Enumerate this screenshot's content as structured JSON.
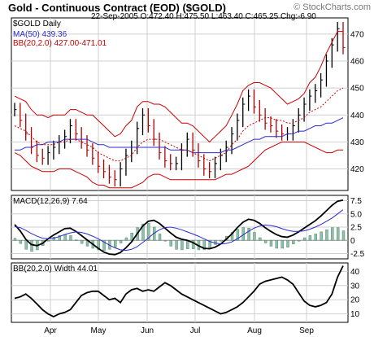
{
  "header": {
    "title": "Gold - Continuous Contract (EOD) ($GOLD)",
    "watermark": "© StockCharts.com"
  },
  "chart_data": [
    {
      "type": "line",
      "title": "$GOLD Daily",
      "date": "22-Sep-2005",
      "ohlc": {
        "open": "O:472.40",
        "high": "H:475.50",
        "low": "L:463.40",
        "close": "C:465.25",
        "change": "Chg:-6.90"
      },
      "legend": [
        "MA(50) 439.36",
        "BB(20,2.0) 427.00-471.01"
      ],
      "ylim": [
        412,
        476
      ],
      "yticks": [
        420,
        430,
        440,
        450,
        460,
        470
      ],
      "xticks": [
        "Apr",
        "May",
        "Jun",
        "Jul",
        "Aug",
        "Sep"
      ],
      "x": [
        0,
        3,
        6,
        9,
        12,
        15,
        18,
        21,
        24,
        27,
        30,
        33,
        36,
        39,
        42,
        45,
        48,
        51,
        54,
        57,
        60,
        63,
        66,
        69,
        72,
        75,
        78,
        81,
        84,
        87,
        90,
        93,
        96,
        99,
        102,
        105,
        108,
        111,
        114,
        117,
        120,
        123,
        126,
        129,
        132,
        135,
        138,
        141,
        144,
        147,
        150,
        153,
        156,
        159,
        162,
        165,
        168,
        171,
        174,
        177
      ],
      "series": [
        {
          "name": "Price",
          "color": "#000000",
          "values": [
            442,
            438,
            433,
            428,
            425,
            424,
            426,
            428,
            430,
            432,
            436,
            433,
            430,
            427,
            424,
            421,
            419,
            417,
            416,
            420,
            425,
            428,
            435,
            440,
            436,
            431,
            426,
            423,
            422,
            422,
            427,
            431,
            427,
            423,
            420,
            419,
            422,
            425,
            428,
            433,
            438,
            444,
            447,
            443,
            440,
            437,
            436,
            434,
            433,
            433,
            436,
            440,
            444,
            447,
            449,
            453,
            460,
            466,
            472,
            465
          ]
        },
        {
          "name": "MA(50)",
          "color": "#2a2ad0",
          "values": [
            427,
            427,
            428,
            428,
            429,
            429,
            430,
            430,
            430,
            431,
            431,
            431,
            431,
            431,
            430,
            429,
            429,
            428,
            428,
            428,
            428,
            428,
            428,
            428,
            428,
            428,
            428,
            428,
            427,
            427,
            427,
            427,
            426,
            426,
            426,
            426,
            426,
            426,
            427,
            427,
            428,
            429,
            430,
            431,
            431,
            432,
            432,
            432,
            432,
            433,
            433,
            434,
            434,
            435,
            436,
            436,
            437,
            437,
            438,
            439
          ]
        },
        {
          "name": "BB upper",
          "color": "#cc0000",
          "values": [
            447,
            446,
            445,
            442,
            440,
            440,
            439,
            440,
            440,
            440,
            442,
            442,
            441,
            440,
            440,
            438,
            436,
            434,
            432,
            433,
            436,
            438,
            443,
            445,
            445,
            444,
            444,
            443,
            441,
            439,
            437,
            437,
            436,
            434,
            432,
            430,
            432,
            434,
            436,
            440,
            444,
            449,
            451,
            452,
            452,
            451,
            450,
            448,
            446,
            444,
            445,
            446,
            448,
            452,
            454,
            458,
            463,
            467,
            471,
            471
          ]
        },
        {
          "name": "BB lower",
          "color": "#cc0000",
          "values": [
            426,
            425,
            423,
            421,
            420,
            419,
            419,
            419,
            420,
            420,
            420,
            419,
            418,
            417,
            415,
            414,
            414,
            413,
            413,
            413,
            413,
            413,
            414,
            415,
            417,
            418,
            418,
            417,
            416,
            416,
            416,
            416,
            416,
            416,
            416,
            416,
            416,
            417,
            418,
            418,
            419,
            420,
            421,
            423,
            425,
            427,
            428,
            429,
            430,
            430,
            430,
            430,
            430,
            429,
            428,
            427,
            426,
            426,
            427,
            427
          ]
        },
        {
          "name": "BB mid",
          "color": "#cc0000",
          "values": [
            436,
            435,
            434,
            432,
            430,
            429,
            429,
            429,
            430,
            430,
            431,
            431,
            430,
            429,
            428,
            426,
            425,
            424,
            423,
            423,
            424,
            425,
            428,
            430,
            431,
            431,
            431,
            430,
            429,
            428,
            427,
            427,
            426,
            425,
            424,
            423,
            424,
            425,
            426,
            429,
            431,
            434,
            436,
            437,
            438,
            439,
            439,
            438,
            438,
            437,
            437,
            438,
            439,
            441,
            442,
            443,
            445,
            447,
            449,
            450
          ]
        }
      ]
    },
    {
      "type": "line",
      "title": "MACD(12,26,9)",
      "value_label": "7.64",
      "ylim": [
        -3.5,
        8.5
      ],
      "yticks": [
        -2.5,
        0,
        2.5,
        5.0,
        7.5
      ],
      "ytick_labels": [
        "-2.5",
        "0",
        "2.5",
        "5.0",
        "7.5"
      ],
      "x": [
        0,
        3,
        6,
        9,
        12,
        15,
        18,
        21,
        24,
        27,
        30,
        33,
        36,
        39,
        42,
        45,
        48,
        51,
        54,
        57,
        60,
        63,
        66,
        69,
        72,
        75,
        78,
        81,
        84,
        87,
        90,
        93,
        96,
        99,
        102,
        105,
        108,
        111,
        114,
        117,
        120,
        123,
        126,
        129,
        132,
        135,
        138,
        141,
        144,
        147,
        150,
        153,
        156,
        159,
        162,
        165,
        168,
        171,
        174,
        177
      ],
      "series": [
        {
          "name": "MACD",
          "color": "#000000",
          "values": [
            3.0,
            1.8,
            0.2,
            -0.8,
            -1.0,
            -0.6,
            0.3,
            1.0,
            1.6,
            2.2,
            2.3,
            1.7,
            0.9,
            0.1,
            -0.7,
            -1.5,
            -2.2,
            -2.6,
            -2.7,
            -2.3,
            -1.4,
            -0.3,
            1.2,
            2.7,
            3.6,
            3.8,
            3.2,
            2.3,
            1.4,
            0.6,
            0.2,
            0.0,
            -0.4,
            -1.0,
            -1.5,
            -1.6,
            -1.3,
            -0.7,
            0.2,
            1.2,
            2.4,
            3.4,
            4.0,
            3.8,
            3.2,
            2.4,
            1.7,
            1.1,
            0.7,
            0.6,
            1.0,
            1.6,
            2.3,
            3.0,
            3.7,
            4.6,
            5.6,
            6.6,
            7.4,
            7.6
          ]
        },
        {
          "name": "Signal",
          "color": "#2a2ad0",
          "values": [
            2.6,
            2.4,
            1.9,
            1.3,
            0.8,
            0.4,
            0.3,
            0.4,
            0.7,
            1.1,
            1.4,
            1.6,
            1.5,
            1.2,
            0.8,
            0.3,
            -0.3,
            -0.9,
            -1.4,
            -1.8,
            -1.9,
            -1.7,
            -1.2,
            -0.4,
            0.4,
            1.3,
            2.0,
            2.4,
            2.5,
            2.3,
            2.0,
            1.6,
            1.2,
            0.8,
            0.3,
            -0.2,
            -0.5,
            -0.7,
            -0.6,
            -0.3,
            0.3,
            1.0,
            1.7,
            2.3,
            2.7,
            2.9,
            2.8,
            2.6,
            2.2,
            1.9,
            1.7,
            1.7,
            1.8,
            2.1,
            2.5,
            3.0,
            3.6,
            4.2,
            5.0,
            5.8
          ]
        }
      ]
    },
    {
      "type": "line",
      "title": "BB(20,2.0) Width",
      "value_label": "44.01",
      "ylim": [
        4,
        46
      ],
      "yticks": [
        10,
        20,
        30,
        40
      ],
      "x": [
        0,
        3,
        6,
        9,
        12,
        15,
        18,
        21,
        24,
        27,
        30,
        33,
        36,
        39,
        42,
        45,
        48,
        51,
        54,
        57,
        60,
        63,
        66,
        69,
        72,
        75,
        78,
        81,
        84,
        87,
        90,
        93,
        96,
        99,
        102,
        105,
        108,
        111,
        114,
        117,
        120,
        123,
        126,
        129,
        132,
        135,
        138,
        141,
        144,
        147,
        150,
        153,
        156,
        159,
        162,
        165,
        168,
        171,
        174,
        177
      ],
      "series": [
        {
          "name": "Width",
          "color": "#000000",
          "values": [
            21,
            22,
            24,
            21,
            17,
            13,
            10,
            8,
            10,
            11,
            13,
            18,
            23,
            25,
            26,
            26,
            23,
            20,
            21,
            18,
            24,
            27,
            28,
            26,
            27,
            26,
            29,
            32,
            30,
            27,
            24,
            22,
            20,
            18,
            16,
            14,
            12,
            10,
            11,
            13,
            15,
            18,
            22,
            26,
            31,
            33,
            34,
            35,
            36,
            34,
            31,
            25,
            19,
            16,
            15,
            16,
            18,
            24,
            36,
            44
          ]
        }
      ]
    }
  ]
}
